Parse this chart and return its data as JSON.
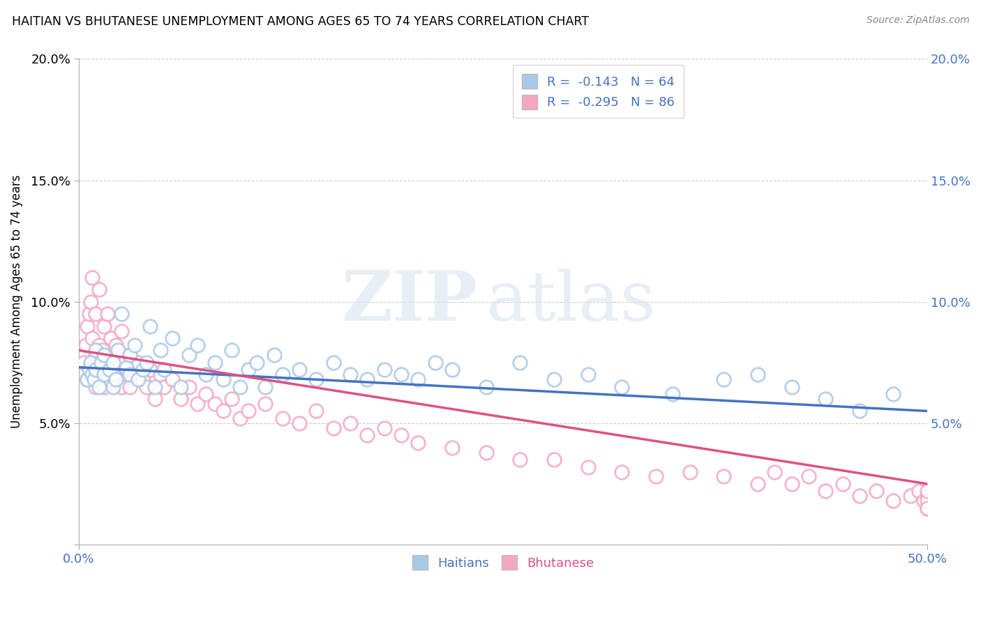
{
  "title": "HAITIAN VS BHUTANESE UNEMPLOYMENT AMONG AGES 65 TO 74 YEARS CORRELATION CHART",
  "source": "Source: ZipAtlas.com",
  "ylabel": "Unemployment Among Ages 65 to 74 years",
  "xlim": [
    0.0,
    0.5
  ],
  "ylim": [
    0.0,
    0.2
  ],
  "xticks": [
    0.0,
    0.5
  ],
  "xticklabels": [
    "0.0%",
    "50.0%"
  ],
  "yticks": [
    0.0,
    0.05,
    0.1,
    0.15,
    0.2
  ],
  "yticklabels": [
    "",
    "5.0%",
    "10.0%",
    "15.0%",
    "20.0%"
  ],
  "right_yticks": [
    0.05,
    0.1,
    0.15,
    0.2
  ],
  "right_yticklabels": [
    "5.0%",
    "10.0%",
    "15.0%",
    "20.0%"
  ],
  "haitian_color": "#a8c8e8",
  "bhutanese_color": "#f4a8c0",
  "haitian_line_color": "#4472c4",
  "bhutanese_line_color": "#e05080",
  "haitian_R": -0.143,
  "haitian_N": 64,
  "bhutanese_R": -0.295,
  "bhutanese_N": 86,
  "background_color": "#ffffff",
  "grid_color": "#cccccc",
  "haitian_x": [
    0.005,
    0.006,
    0.007,
    0.008,
    0.009,
    0.01,
    0.01,
    0.012,
    0.013,
    0.015,
    0.015,
    0.018,
    0.02,
    0.02,
    0.022,
    0.023,
    0.025,
    0.028,
    0.03,
    0.03,
    0.033,
    0.035,
    0.038,
    0.04,
    0.042,
    0.045,
    0.048,
    0.05,
    0.055,
    0.06,
    0.065,
    0.07,
    0.075,
    0.08,
    0.085,
    0.09,
    0.095,
    0.1,
    0.105,
    0.11,
    0.115,
    0.12,
    0.13,
    0.14,
    0.15,
    0.16,
    0.17,
    0.18,
    0.19,
    0.2,
    0.21,
    0.22,
    0.24,
    0.26,
    0.28,
    0.3,
    0.32,
    0.35,
    0.38,
    0.4,
    0.42,
    0.44,
    0.46,
    0.48
  ],
  "haitian_y": [
    0.068,
    0.072,
    0.075,
    0.07,
    0.068,
    0.072,
    0.08,
    0.065,
    0.075,
    0.07,
    0.078,
    0.072,
    0.065,
    0.075,
    0.068,
    0.08,
    0.095,
    0.073,
    0.07,
    0.078,
    0.082,
    0.068,
    0.072,
    0.075,
    0.09,
    0.065,
    0.08,
    0.072,
    0.085,
    0.065,
    0.078,
    0.082,
    0.07,
    0.075,
    0.068,
    0.08,
    0.065,
    0.072,
    0.075,
    0.065,
    0.078,
    0.07,
    0.072,
    0.068,
    0.075,
    0.07,
    0.068,
    0.072,
    0.07,
    0.068,
    0.075,
    0.072,
    0.065,
    0.075,
    0.068,
    0.07,
    0.065,
    0.062,
    0.068,
    0.07,
    0.065,
    0.06,
    0.055,
    0.062
  ],
  "bhutanese_x": [
    0.003,
    0.004,
    0.005,
    0.005,
    0.006,
    0.007,
    0.007,
    0.008,
    0.008,
    0.009,
    0.01,
    0.01,
    0.01,
    0.011,
    0.012,
    0.012,
    0.013,
    0.014,
    0.015,
    0.015,
    0.016,
    0.017,
    0.018,
    0.019,
    0.02,
    0.02,
    0.022,
    0.025,
    0.025,
    0.028,
    0.03,
    0.03,
    0.033,
    0.035,
    0.038,
    0.04,
    0.042,
    0.045,
    0.048,
    0.05,
    0.055,
    0.06,
    0.065,
    0.07,
    0.075,
    0.08,
    0.085,
    0.09,
    0.095,
    0.1,
    0.11,
    0.12,
    0.13,
    0.14,
    0.15,
    0.16,
    0.17,
    0.18,
    0.19,
    0.2,
    0.22,
    0.24,
    0.26,
    0.28,
    0.3,
    0.32,
    0.34,
    0.36,
    0.38,
    0.4,
    0.41,
    0.42,
    0.43,
    0.44,
    0.45,
    0.46,
    0.47,
    0.48,
    0.49,
    0.495,
    0.498,
    0.5,
    0.5,
    0.5,
    0.5,
    0.5
  ],
  "bhutanese_y": [
    0.075,
    0.082,
    0.068,
    0.09,
    0.095,
    0.072,
    0.1,
    0.085,
    0.11,
    0.07,
    0.065,
    0.078,
    0.095,
    0.075,
    0.082,
    0.105,
    0.07,
    0.08,
    0.065,
    0.09,
    0.075,
    0.095,
    0.068,
    0.085,
    0.07,
    0.078,
    0.082,
    0.065,
    0.088,
    0.072,
    0.065,
    0.078,
    0.07,
    0.075,
    0.068,
    0.065,
    0.072,
    0.06,
    0.07,
    0.065,
    0.068,
    0.06,
    0.065,
    0.058,
    0.062,
    0.058,
    0.055,
    0.06,
    0.052,
    0.055,
    0.058,
    0.052,
    0.05,
    0.055,
    0.048,
    0.05,
    0.045,
    0.048,
    0.045,
    0.042,
    0.04,
    0.038,
    0.035,
    0.035,
    0.032,
    0.03,
    0.028,
    0.03,
    0.028,
    0.025,
    0.03,
    0.025,
    0.028,
    0.022,
    0.025,
    0.02,
    0.022,
    0.018,
    0.02,
    0.022,
    0.018,
    0.02,
    0.015,
    0.018,
    0.022,
    0.015
  ],
  "haitian_trend_x0": 0.0,
  "haitian_trend_x1": 0.5,
  "haitian_trend_y0": 0.073,
  "haitian_trend_y1": 0.055,
  "bhutanese_trend_x0": 0.0,
  "bhutanese_trend_x1": 0.5,
  "bhutanese_trend_y0": 0.08,
  "bhutanese_trend_y1": 0.025
}
